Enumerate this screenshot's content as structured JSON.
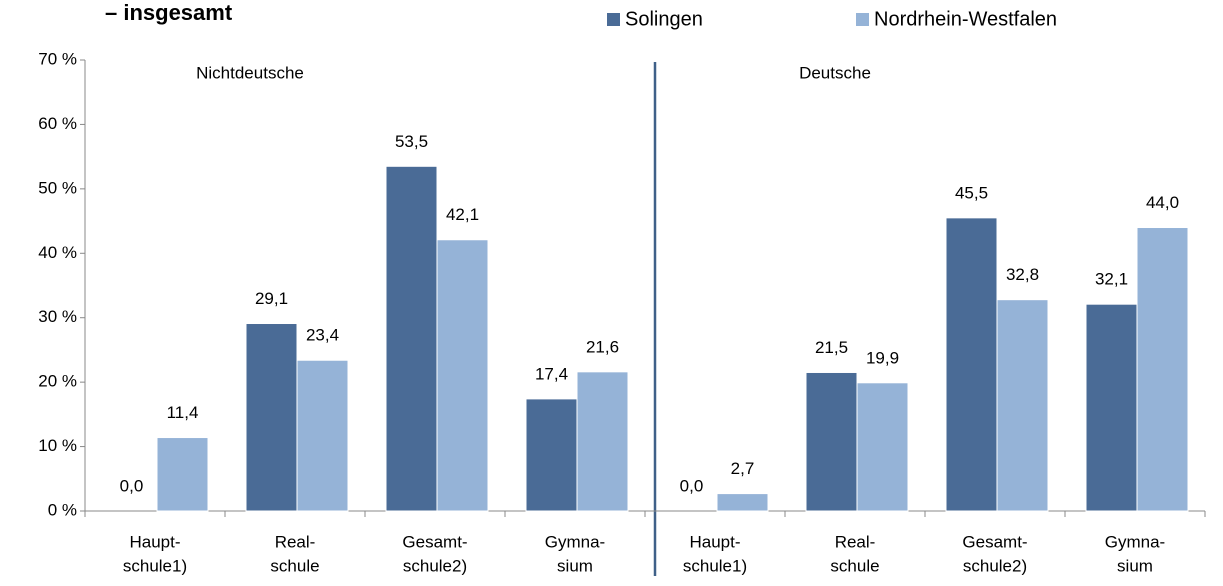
{
  "chart_data": {
    "type": "bar",
    "title": "– insgesamt",
    "annotations": [
      "Nichtdeutsche",
      "Deutsche"
    ],
    "categories": [
      [
        "Haupt-",
        "schule1)"
      ],
      [
        "Real-",
        "schule"
      ],
      [
        "Gesamt-",
        "schule2)"
      ],
      [
        "Gymna-",
        "sium"
      ],
      [
        "Haupt-",
        "schule1)"
      ],
      [
        "Real-",
        "schule"
      ],
      [
        "Gesamt-",
        "schule2)"
      ],
      [
        "Gymna-",
        "sium"
      ]
    ],
    "series": [
      {
        "name": "Solingen",
        "color": "#4a6b96",
        "values": [
          0,
          29.1,
          53.5,
          17.4,
          0,
          21.5,
          45.5,
          32.1
        ],
        "value_labels": [
          "0,0",
          "29,1",
          "53,5",
          "17,4",
          "0,0",
          "21,5",
          "45,5",
          "32,1"
        ]
      },
      {
        "name": "Nordrhein-Westfalen",
        "color": "#95b3d7",
        "values": [
          11.4,
          23.4,
          42.1,
          21.6,
          2.7,
          19.9,
          32.8,
          44.0
        ],
        "value_labels": [
          "11,4",
          "23,4",
          "42,1",
          "21,6",
          "2,7",
          "19,9",
          "32,8",
          "44,0"
        ]
      }
    ],
    "ylim": [
      0,
      70
    ],
    "yticks": [
      {
        "value": 0,
        "label": "0 %"
      },
      {
        "value": 10,
        "label": "10 %"
      },
      {
        "value": 20,
        "label": "20 %"
      },
      {
        "value": 30,
        "label": "30 %"
      },
      {
        "value": 40,
        "label": "40 %"
      },
      {
        "value": 50,
        "label": "50 %"
      },
      {
        "value": 60,
        "label": "60 %"
      },
      {
        "value": 70,
        "label": "70 %"
      }
    ],
    "legend": "top"
  }
}
